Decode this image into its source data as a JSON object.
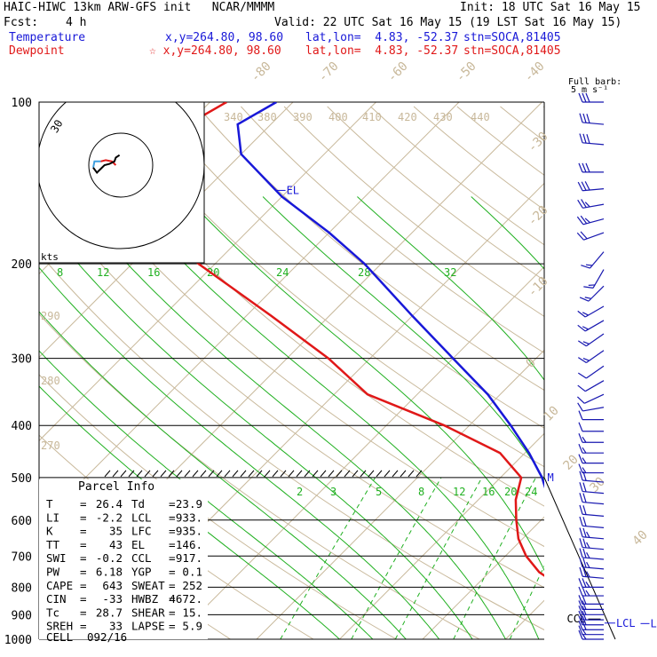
{
  "header": {
    "model": "HAIC-HIWC 13km ARW-GFS init   NCAR/MMMM",
    "init": "Init: 18 UTC Sat 16 May 15",
    "fcst_label": "Fcst:",
    "fcst_value": "4 h",
    "valid": "Valid: 22 UTC Sat 16 May 15 (19 LST Sat 16 May 15)",
    "temp_label": "Temperature",
    "temp_xy": "x,y=264.80, 98.60",
    "temp_latlon": "lat,lon=  4.83, -52.37",
    "temp_stn": "stn=SOCA,81405",
    "dew_label": "Dewpoint",
    "dew_xy": "☆ x,y=264.80, 98.60",
    "dew_latlon": "lat,lon=  4.83, -52.37",
    "dew_stn": "stn=SOCA,81405"
  },
  "colors": {
    "temperature": "#1818d8",
    "dewpoint": "#e01818",
    "isotherm": "#c8b89a",
    "dry_adiabat": "#c8b89a",
    "moist_adiabat": "#20b020",
    "mixing_ratio": "#20b020",
    "isobar": "#000000",
    "wind_barb": "#1818b0"
  },
  "barb_legend": {
    "line1": "Full barb:",
    "line2": "5 m s⁻¹"
  },
  "hodograph": {
    "units": "kts",
    "ring_label": "30"
  },
  "chart_data": {
    "type": "skew-t",
    "pressure_axis": {
      "scale": "log",
      "range": [
        1000,
        100
      ],
      "ticks": [
        100,
        200,
        300,
        400,
        500,
        600,
        700,
        800,
        900,
        1000
      ]
    },
    "isotherm_labels": [
      -80,
      -70,
      -60,
      -50,
      -40,
      -30,
      -20,
      -10,
      0,
      10,
      20,
      30,
      40
    ],
    "theta_labels": [
      270,
      280,
      290,
      340,
      380,
      390,
      400,
      410,
      420,
      430,
      440
    ],
    "theta_e_labels": [
      8,
      12,
      16,
      20,
      24,
      28,
      32
    ],
    "mixing_ratio_labels": [
      2,
      3,
      5,
      8,
      12,
      16,
      20,
      24
    ],
    "temperature": [
      [
        1000,
        26.4
      ],
      [
        975,
        23.3
      ],
      [
        950,
        21.0
      ],
      [
        925,
        19.5
      ],
      [
        900,
        18.0
      ],
      [
        850,
        15.0
      ],
      [
        800,
        12.5
      ],
      [
        750,
        10.0
      ],
      [
        700,
        8.0
      ],
      [
        650,
        5.5
      ],
      [
        600,
        2.0
      ],
      [
        550,
        -1.5
      ],
      [
        500,
        -5.0
      ],
      [
        450,
        -9.5
      ],
      [
        400,
        -15.0
      ],
      [
        350,
        -21.5
      ],
      [
        300,
        -30.0
      ],
      [
        250,
        -40.0
      ],
      [
        200,
        -52.0
      ],
      [
        175,
        -60.0
      ],
      [
        150,
        -70.0
      ],
      [
        125,
        -80.0
      ],
      [
        110,
        -84.0
      ],
      [
        100,
        -82.0
      ]
    ],
    "dewpoint": [
      [
        1000,
        23.9
      ],
      [
        975,
        22.5
      ],
      [
        950,
        20.4
      ],
      [
        925,
        18.3
      ],
      [
        900,
        16.2
      ],
      [
        850,
        13.5
      ],
      [
        800,
        10.5
      ],
      [
        750,
        6.0
      ],
      [
        700,
        2.5
      ],
      [
        650,
        -0.5
      ],
      [
        600,
        -3.0
      ],
      [
        550,
        -5.5
      ],
      [
        500,
        -7.5
      ],
      [
        450,
        -13.0
      ],
      [
        400,
        -23.0
      ],
      [
        350,
        -36.0
      ],
      [
        300,
        -45.0
      ],
      [
        250,
        -57.0
      ],
      [
        200,
        -72.0
      ],
      [
        175,
        -80.0
      ],
      [
        150,
        -87.0
      ],
      [
        125,
        -90.0
      ],
      [
        110,
        -90.0
      ],
      [
        100,
        -88.0
      ]
    ],
    "levels": [
      {
        "name": "EL",
        "pressure": 146
      },
      {
        "name": "LCL",
        "pressure": 933
      },
      {
        "name": "LFC",
        "pressure": 935
      },
      {
        "name": "CCL",
        "pressure": 917
      },
      {
        "name": "M",
        "pressure": 500
      }
    ],
    "hodograph_kts": [
      [
        -4,
        0
      ],
      [
        -7,
        3
      ],
      [
        -12,
        4
      ],
      [
        -16,
        3
      ],
      [
        -21,
        3
      ],
      [
        -22,
        -2
      ],
      [
        -19,
        -6
      ],
      [
        -17,
        -4
      ],
      [
        -13,
        0
      ],
      [
        -9,
        1
      ],
      [
        -5,
        3
      ],
      [
        -4,
        6
      ],
      [
        -1,
        8
      ]
    ]
  },
  "parcel_info": {
    "title": "Parcel Info",
    "rows": [
      {
        "l1": "T",
        "v1": "26.4",
        "l2": "Td",
        "v2": "23.9"
      },
      {
        "l1": "LI",
        "v1": "-2.2",
        "l2": "LCL",
        "v2": "933."
      },
      {
        "l1": "K",
        "v1": "35",
        "l2": "LFC",
        "v2": "935."
      },
      {
        "l1": "TT",
        "v1": "43",
        "l2": "EL",
        "v2": "146."
      },
      {
        "l1": "SWI",
        "v1": "-0.2",
        "l2": "CCL",
        "v2": "917."
      },
      {
        "l1": "PW",
        "v1": "6.18",
        "l2": "YGP",
        "v2": "0.1"
      },
      {
        "l1": "CAPE",
        "v1": "643",
        "l2": "SWEAT",
        "v2": "252"
      },
      {
        "l1": "CIN",
        "v1": "-33",
        "l2": "HWBZ",
        "v2": "4672."
      },
      {
        "l1": "Tc",
        "v1": "28.7",
        "l2": "SHEAR",
        "v2": "15."
      },
      {
        "l1": "SREH",
        "v1": "33",
        "l2": "LAPSE",
        "v2": "5.9"
      }
    ],
    "cell_label": "CELL",
    "cell_value": "092/16"
  },
  "wind_barbs": [
    {
      "p": 100,
      "dir": 90,
      "spd": 30
    },
    {
      "p": 110,
      "dir": 95,
      "spd": 30
    },
    {
      "p": 120,
      "dir": 95,
      "spd": 30
    },
    {
      "p": 135,
      "dir": 90,
      "spd": 30
    },
    {
      "p": 145,
      "dir": 85,
      "spd": 30
    },
    {
      "p": 155,
      "dir": 80,
      "spd": 25
    },
    {
      "p": 165,
      "dir": 75,
      "spd": 25
    },
    {
      "p": 175,
      "dir": 70,
      "spd": 20
    },
    {
      "p": 190,
      "dir": 40,
      "spd": 15
    },
    {
      "p": 205,
      "dir": 30,
      "spd": 15
    },
    {
      "p": 220,
      "dir": 45,
      "spd": 15
    },
    {
      "p": 240,
      "dir": 60,
      "spd": 15
    },
    {
      "p": 255,
      "dir": 60,
      "spd": 15
    },
    {
      "p": 270,
      "dir": 55,
      "spd": 15
    },
    {
      "p": 290,
      "dir": 55,
      "spd": 15
    },
    {
      "p": 310,
      "dir": 55,
      "spd": 10
    },
    {
      "p": 330,
      "dir": 60,
      "spd": 10
    },
    {
      "p": 350,
      "dir": 65,
      "spd": 10
    },
    {
      "p": 370,
      "dir": 80,
      "spd": 10
    },
    {
      "p": 390,
      "dir": 90,
      "spd": 10
    },
    {
      "p": 410,
      "dir": 90,
      "spd": 10
    },
    {
      "p": 430,
      "dir": 90,
      "spd": 15
    },
    {
      "p": 450,
      "dir": 90,
      "spd": 15
    },
    {
      "p": 470,
      "dir": 90,
      "spd": 15
    },
    {
      "p": 490,
      "dir": 90,
      "spd": 15
    },
    {
      "p": 510,
      "dir": 95,
      "spd": 20
    },
    {
      "p": 535,
      "dir": 95,
      "spd": 20
    },
    {
      "p": 560,
      "dir": 95,
      "spd": 20
    },
    {
      "p": 590,
      "dir": 95,
      "spd": 20
    },
    {
      "p": 620,
      "dir": 95,
      "spd": 20
    },
    {
      "p": 650,
      "dir": 95,
      "spd": 25
    },
    {
      "p": 680,
      "dir": 95,
      "spd": 25
    },
    {
      "p": 710,
      "dir": 95,
      "spd": 25
    },
    {
      "p": 740,
      "dir": 95,
      "spd": 25
    },
    {
      "p": 770,
      "dir": 95,
      "spd": 25
    },
    {
      "p": 800,
      "dir": 90,
      "spd": 25
    },
    {
      "p": 830,
      "dir": 90,
      "spd": 25
    },
    {
      "p": 860,
      "dir": 90,
      "spd": 20
    },
    {
      "p": 880,
      "dir": 90,
      "spd": 20
    },
    {
      "p": 900,
      "dir": 90,
      "spd": 20
    },
    {
      "p": 920,
      "dir": 90,
      "spd": 20
    },
    {
      "p": 940,
      "dir": 90,
      "spd": 20
    },
    {
      "p": 960,
      "dir": 90,
      "spd": 20
    },
    {
      "p": 980,
      "dir": 90,
      "spd": 15
    },
    {
      "p": 1000,
      "dir": 90,
      "spd": 15
    }
  ]
}
